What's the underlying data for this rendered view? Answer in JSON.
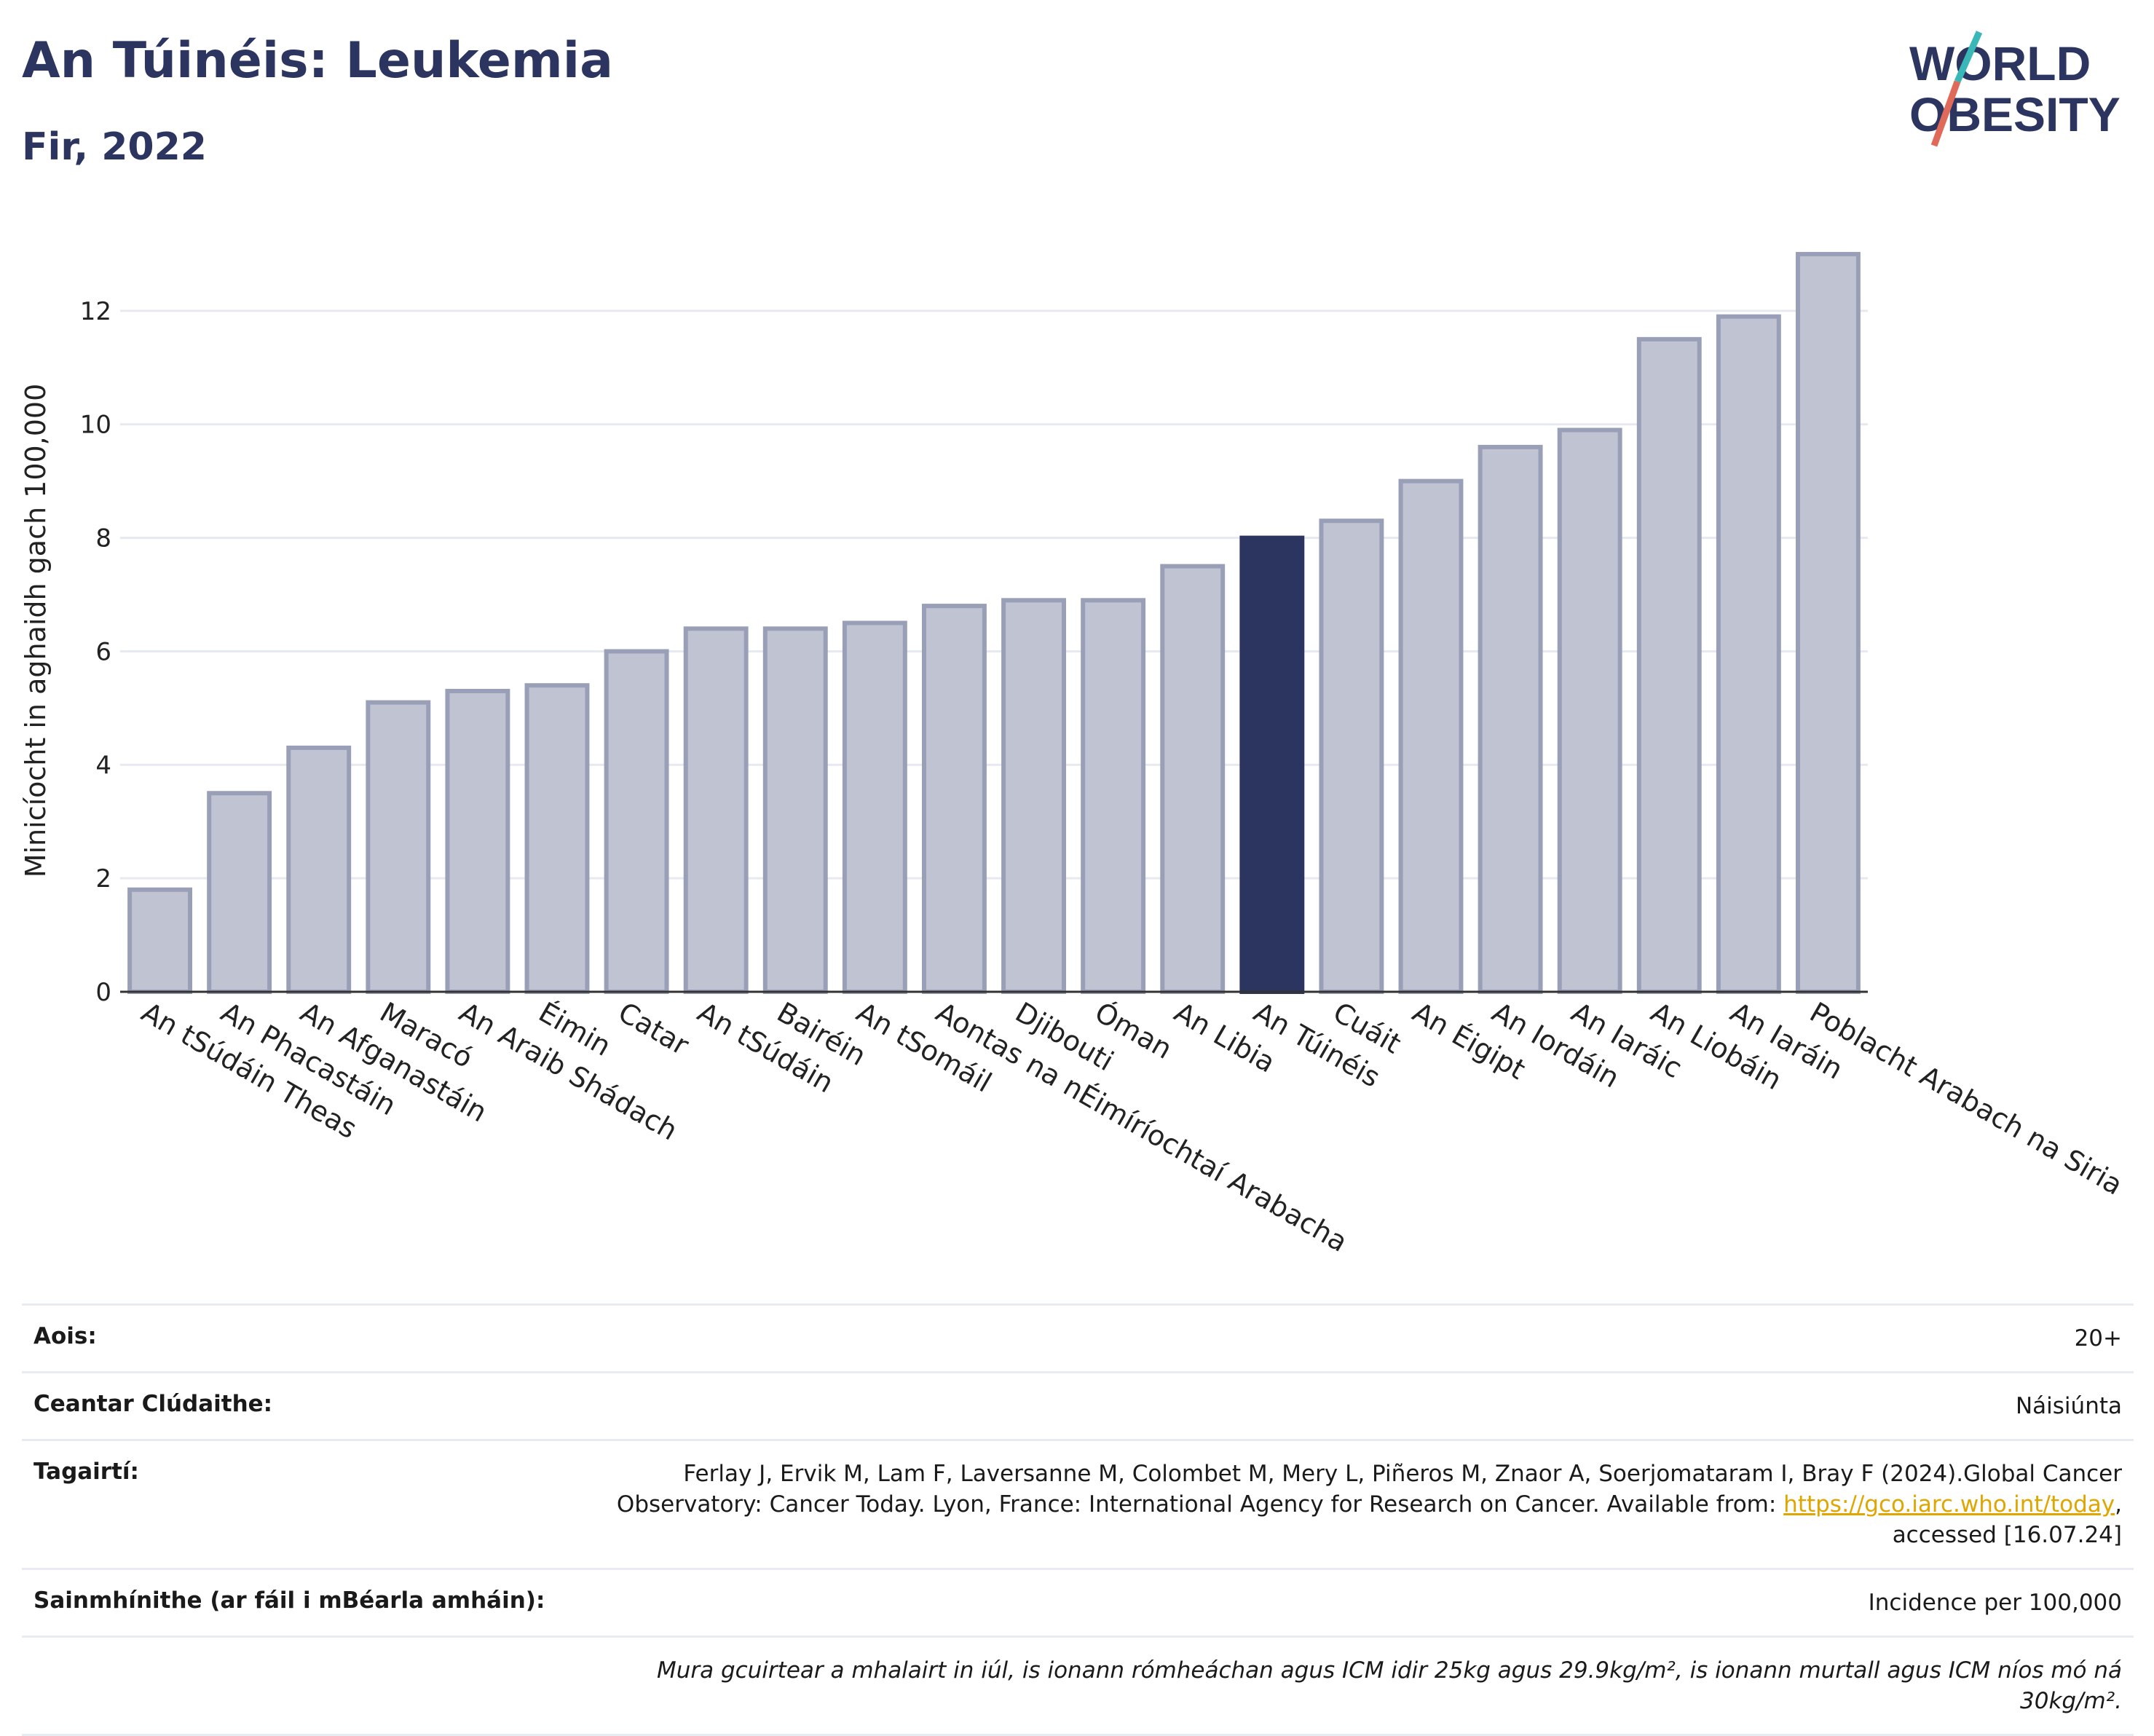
{
  "header": {
    "title": "An Túinéis: Leukemia",
    "subtitle": "Fir, 2022"
  },
  "logo": {
    "line1": "WORLD",
    "line2": "OBESITY"
  },
  "colors": {
    "bar": "#c0c3d1",
    "bar_border": "#9a9fb8",
    "highlight": "#2b3560",
    "accent_teal": "#3ab8b8",
    "accent_coral": "#e06a5a"
  },
  "chart_data": {
    "type": "bar",
    "ylabel": "Minicíocht in aghaidh gach 100,000",
    "ylim": [
      0,
      13.5
    ],
    "yticks": [
      0,
      2,
      4,
      6,
      8,
      10,
      12
    ],
    "grid": true,
    "highlight_category": "An Túinéis",
    "categories": [
      "An tSúdáin Theas",
      "An Phacastáin",
      "An Afganastáin",
      "Maracó",
      "An Araib Shádach",
      "Éimin",
      "Catar",
      "An tSúdáin",
      "Bairéin",
      "An tSomáil",
      "Aontas na nÉimíríochtaí Arabacha",
      "Djibouti",
      "Óman",
      "An Libia",
      "An Túinéis",
      "Cuáit",
      "An Éigipt",
      "An Iordáin",
      "An Iaráic",
      "An Liobáin",
      "An Iaráin",
      "Poblacht Arabach na Siria"
    ],
    "values": [
      1.8,
      3.5,
      4.3,
      5.1,
      5.3,
      5.4,
      6.0,
      6.4,
      6.4,
      6.5,
      6.8,
      6.9,
      6.9,
      7.5,
      8.0,
      8.3,
      9.0,
      9.6,
      9.9,
      11.5,
      11.9,
      13.0
    ]
  },
  "info": {
    "age_label": "Aois:",
    "age_value": "20+",
    "coverage_label": "Ceantar Clúdaithe:",
    "coverage_value": "Náisiúnta",
    "refs_label": "Tagairtí:",
    "refs_text1": "Ferlay J, Ervik M, Lam F, Laversanne M, Colombet M, Mery L, Piñeros M, Znaor A, Soerjomataram I, Bray F (2024).Global Cancer Observatory: Cancer Today. Lyon, France: International Agency for Research on Cancer. Available from: ",
    "refs_link": "https://gco.iarc.who.int/today",
    "refs_text2": ", accessed [16.07.24]",
    "defs_label": "Sainmhínithe (ar fáil i mBéarla amháin):",
    "defs_value": "Incidence per 100,000",
    "note": "Mura gcuirtear a mhalairt in iúl, is ionann rómheáchan agus ICM idir 25kg agus 29.9kg/m², is ionann murtall agus ICM níos mó ná 30kg/m²."
  }
}
